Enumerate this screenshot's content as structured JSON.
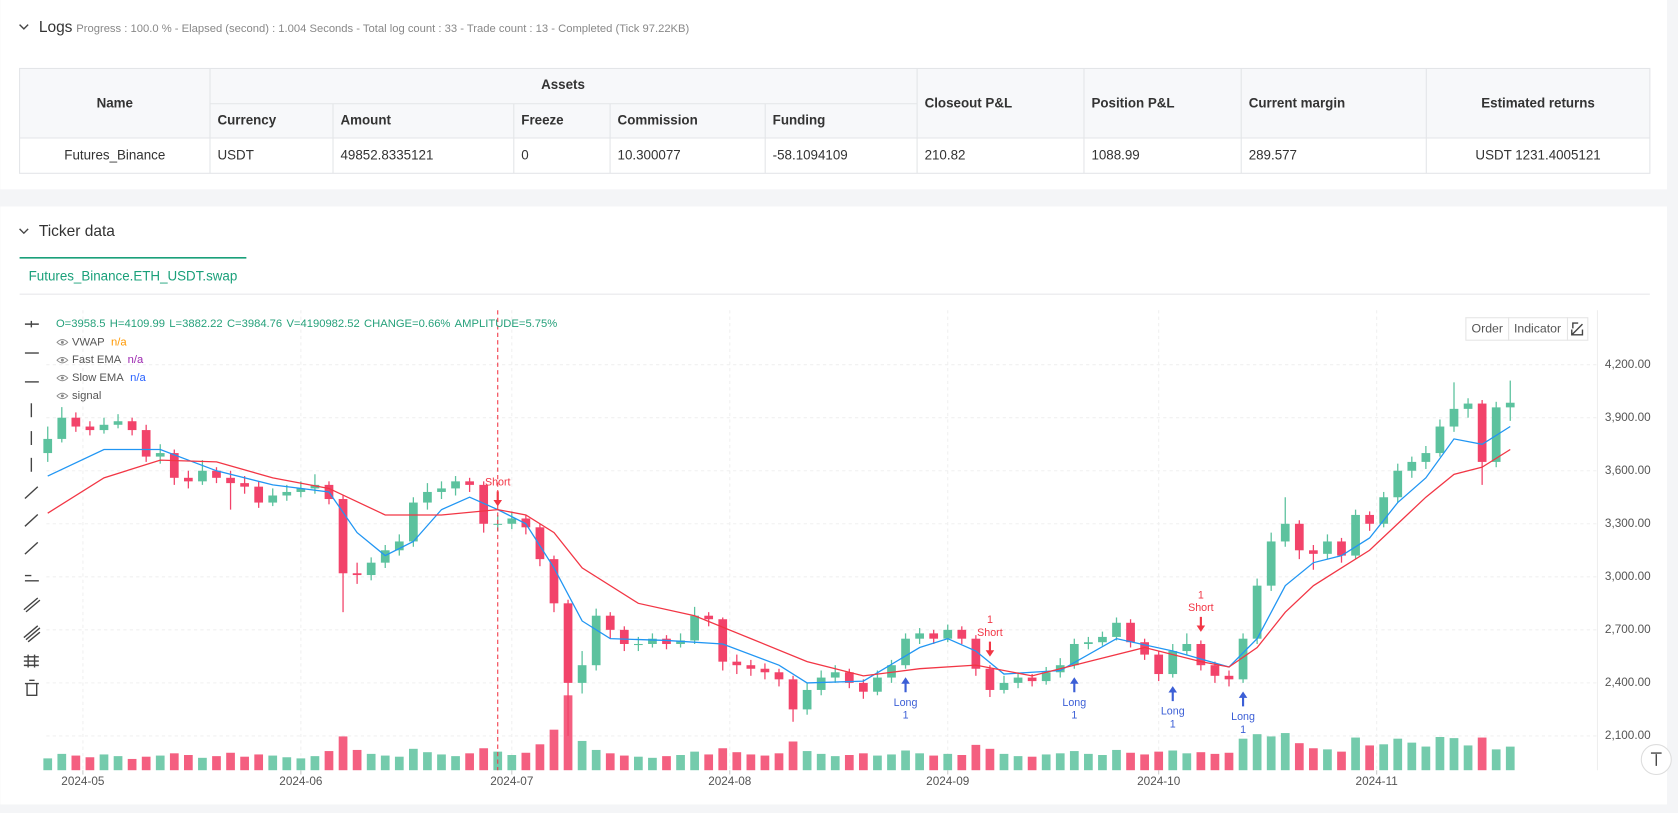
{
  "logs": {
    "title": "Logs",
    "status": "Progress : 100.0 % - Elapsed (second) :  1.004  Seconds - Total log count : 33 - Trade count : 13 - Completed (Tick 97.22KB)"
  },
  "table": {
    "name_header": "Name",
    "group_header": "Assets",
    "group_columns": [
      "Currency",
      "Amount",
      "Freeze",
      "Commission",
      "Funding"
    ],
    "columns": [
      "Closeout P&L",
      "Position P&L",
      "Current margin",
      "Estimated returns"
    ],
    "rows": [
      [
        "Futures_Binance",
        "USDT",
        "49852.8335121",
        "0",
        "10.300077",
        "-58.1094109",
        "210.82",
        "1088.99",
        "289.577",
        "USDT 1231.4005121"
      ]
    ]
  },
  "ticker": {
    "title": "Ticker data",
    "tab": "Futures_Binance.ETH_USDT.swap",
    "buttons": [
      "Order",
      "Indicator"
    ]
  },
  "chart_data": {
    "type": "candlestick",
    "ohlc_text": [
      "O=3958.5",
      "H=4109.99",
      "L=3882.22",
      "C=3984.76",
      "V=4190982.52",
      "CHANGE=0.66%",
      "AMPLITUDE=5.75%"
    ],
    "legend": [
      {
        "name": "VWAP",
        "value": "n/a",
        "color": "#ff9800"
      },
      {
        "name": "Fast EMA",
        "value": "n/a",
        "color": "#9c27b0"
      },
      {
        "name": "Slow EMA",
        "value": "n/a",
        "color": "#2962ff"
      },
      {
        "name": "signal"
      }
    ],
    "up_color": "#5cc29e",
    "down_color": "#f2436a",
    "xlim": [
      -0.1,
      110.2
    ],
    "ylim": [
      1906,
      4508
    ],
    "xticks": [
      {
        "value": 2.5,
        "label": "2024-05"
      },
      {
        "value": 18,
        "label": "2024-06"
      },
      {
        "value": 33,
        "label": "2024-07"
      },
      {
        "value": 48.5,
        "label": "2024-08"
      },
      {
        "value": 64,
        "label": "2024-09"
      },
      {
        "value": 79,
        "label": "2024-10"
      },
      {
        "value": 94.5,
        "label": "2024-11"
      }
    ],
    "yticks": [
      {
        "value": 2100,
        "label": "2,100.00"
      },
      {
        "value": 2400,
        "label": "2,400.00"
      },
      {
        "value": 2700,
        "label": "2,700.00"
      },
      {
        "value": 3000,
        "label": "3,000.00"
      },
      {
        "value": 3300,
        "label": "3,300.00"
      },
      {
        "value": 3600,
        "label": "3,600.00"
      },
      {
        "value": 3900,
        "label": "3,900.00"
      },
      {
        "value": 4200,
        "label": "4,200.00"
      }
    ],
    "open": [
      3700,
      3780,
      3900,
      3850,
      3830,
      3860,
      3880,
      3830,
      3680,
      3700,
      3560,
      3540,
      3600,
      3560,
      3530,
      3510,
      3420,
      3460,
      3480,
      3500,
      3520,
      3440,
      3020,
      3010,
      3080,
      3150,
      3200,
      3420,
      3480,
      3500,
      3540,
      3520,
      3300,
      3300,
      3330,
      3280,
      3100,
      2850,
      2400,
      2500,
      2780,
      2700,
      2620,
      2620,
      2650,
      2620,
      2640,
      2780,
      2760,
      2520,
      2500,
      2480,
      2460,
      2420,
      2250,
      2360,
      2430,
      2460,
      2400,
      2350,
      2430,
      2500,
      2650,
      2680,
      2650,
      2700,
      2650,
      2480,
      2360,
      2400,
      2430,
      2410,
      2460,
      2500,
      2620,
      2630,
      2660,
      2740,
      2630,
      2560,
      2450,
      2580,
      2620,
      2500,
      2440,
      2420,
      2650,
      2950,
      3200,
      3300,
      3150,
      3130,
      3200,
      3120,
      3350,
      3300,
      3450,
      3600,
      3650,
      3700,
      3850,
      3950,
      3980,
      3650,
      3958.5
    ],
    "high": [
      3850,
      3960,
      3930,
      3880,
      3900,
      3920,
      3900,
      3860,
      3750,
      3720,
      3600,
      3660,
      3620,
      3600,
      3570,
      3540,
      3500,
      3520,
      3540,
      3580,
      3540,
      3460,
      3080,
      3110,
      3180,
      3240,
      3450,
      3530,
      3540,
      3570,
      3560,
      3540,
      3350,
      3370,
      3350,
      3300,
      3120,
      2870,
      2580,
      2820,
      2800,
      2720,
      2660,
      2680,
      2670,
      2680,
      2830,
      2800,
      2770,
      2560,
      2530,
      2510,
      2480,
      2440,
      2400,
      2470,
      2500,
      2480,
      2420,
      2470,
      2530,
      2680,
      2710,
      2700,
      2730,
      2720,
      2670,
      2500,
      2440,
      2460,
      2450,
      2490,
      2540,
      2650,
      2660,
      2690,
      2770,
      2760,
      2650,
      2580,
      2620,
      2680,
      2640,
      2520,
      2470,
      2680,
      2990,
      3250,
      3450,
      3320,
      3180,
      3240,
      3220,
      3380,
      3370,
      3480,
      3640,
      3680,
      3740,
      3890,
      4100,
      4010,
      4000,
      3990,
      4109.99
    ],
    "low": [
      3650,
      3760,
      3820,
      3800,
      3810,
      3840,
      3800,
      3650,
      3640,
      3520,
      3500,
      3520,
      3530,
      3380,
      3470,
      3390,
      3400,
      3430,
      3450,
      3470,
      3410,
      2800,
      2960,
      2980,
      3050,
      3120,
      3170,
      3380,
      3440,
      3460,
      3480,
      3250,
      3260,
      3270,
      3240,
      3060,
      2800,
      2100,
      2340,
      2470,
      2650,
      2580,
      2580,
      2600,
      2590,
      2600,
      2620,
      2720,
      2470,
      2450,
      2440,
      2420,
      2380,
      2180,
      2220,
      2330,
      2400,
      2370,
      2310,
      2330,
      2400,
      2480,
      2620,
      2620,
      2630,
      2620,
      2440,
      2320,
      2340,
      2370,
      2380,
      2390,
      2430,
      2480,
      2590,
      2610,
      2640,
      2600,
      2530,
      2410,
      2430,
      2560,
      2470,
      2400,
      2380,
      2400,
      2620,
      2920,
      3170,
      3100,
      3040,
      3100,
      3080,
      3100,
      3260,
      3280,
      3420,
      3560,
      3610,
      3680,
      3820,
      3900,
      3520,
      3620,
      3882.22
    ],
    "close": [
      3780,
      3900,
      3850,
      3830,
      3860,
      3880,
      3830,
      3680,
      3700,
      3560,
      3540,
      3600,
      3560,
      3530,
      3510,
      3420,
      3460,
      3480,
      3500,
      3520,
      3440,
      3020,
      3010,
      3080,
      3150,
      3200,
      3420,
      3480,
      3500,
      3540,
      3520,
      3300,
      3300,
      3330,
      3280,
      3100,
      2850,
      2400,
      2500,
      2780,
      2700,
      2620,
      2620,
      2650,
      2620,
      2640,
      2780,
      2760,
      2520,
      2500,
      2480,
      2460,
      2420,
      2250,
      2360,
      2430,
      2460,
      2400,
      2350,
      2430,
      2500,
      2650,
      2680,
      2650,
      2700,
      2650,
      2480,
      2360,
      2400,
      2430,
      2410,
      2460,
      2500,
      2620,
      2630,
      2660,
      2740,
      2630,
      2560,
      2450,
      2580,
      2620,
      2500,
      2440,
      2420,
      2650,
      2950,
      3200,
      3300,
      3150,
      3130,
      3200,
      3120,
      3350,
      3300,
      3450,
      3600,
      3650,
      3700,
      3850,
      3950,
      3980,
      3650,
      3958.5,
      3984.76
    ],
    "volume": [
      2100000,
      2900000,
      2600000,
      2300000,
      2800000,
      2500000,
      2000000,
      2400000,
      2600000,
      3000000,
      2700000,
      2200000,
      2500000,
      3100000,
      2400000,
      2800000,
      2600000,
      2300000,
      2100000,
      2500000,
      3400000,
      6000000,
      3600000,
      2900000,
      2600000,
      2400000,
      3800000,
      3200000,
      2800000,
      2500000,
      3000000,
      3900000,
      3300000,
      2700000,
      3100000,
      4600000,
      7200000,
      13300000,
      5200000,
      3600000,
      3000000,
      2600000,
      2400000,
      2200000,
      2500000,
      2700000,
      3300000,
      2800000,
      3900000,
      3200000,
      2800000,
      2600000,
      3000000,
      5100000,
      3400000,
      2900000,
      2500000,
      2700000,
      3000000,
      2600000,
      2800000,
      3500000,
      3000000,
      2600000,
      2900000,
      2700000,
      4500000,
      3800000,
      2900000,
      2500000,
      2400000,
      2800000,
      3000000,
      3400000,
      2900000,
      2700000,
      3600000,
      3100000,
      2800000,
      3300000,
      3500000,
      3000000,
      3200000,
      2900000,
      3100000,
      5600000,
      6400000,
      6000000,
      6600000,
      4800000,
      3900000,
      3700000,
      3300000,
      5800000,
      4400000,
      4600000,
      5600000,
      4900000,
      4200000,
      5900000,
      5700000,
      4400000,
      5800000,
      3700000,
      4190982.52
    ],
    "series": [
      {
        "color": "#2196f3",
        "x": [
          0,
          4,
          8,
          12,
          16,
          20,
          22,
          24,
          26,
          28,
          30,
          32,
          34,
          36,
          38,
          40,
          44,
          48,
          52,
          54,
          58,
          62,
          64,
          66,
          68,
          72,
          76,
          80,
          84,
          86,
          88,
          90,
          92,
          94,
          96,
          98,
          100,
          102,
          104
        ],
        "values": [
          3570,
          3720,
          3720,
          3600,
          3520,
          3480,
          3250,
          3120,
          3200,
          3380,
          3450,
          3380,
          3300,
          3050,
          2750,
          2650,
          2640,
          2620,
          2500,
          2400,
          2410,
          2600,
          2650,
          2580,
          2450,
          2470,
          2650,
          2580,
          2490,
          2650,
          2950,
          3080,
          3120,
          3220,
          3420,
          3560,
          3780,
          3750,
          3850
        ]
      },
      {
        "color": "#f23645",
        "x": [
          0,
          4,
          8,
          12,
          16,
          20,
          24,
          28,
          32,
          34,
          36,
          38,
          42,
          46,
          50,
          54,
          58,
          62,
          66,
          70,
          74,
          78,
          82,
          84,
          86,
          88,
          90,
          92,
          94,
          96,
          98,
          100,
          102,
          104
        ],
        "values": [
          3360,
          3560,
          3660,
          3650,
          3560,
          3500,
          3350,
          3350,
          3380,
          3350,
          3250,
          3050,
          2850,
          2780,
          2650,
          2520,
          2440,
          2480,
          2500,
          2440,
          2520,
          2600,
          2520,
          2490,
          2600,
          2800,
          2950,
          3050,
          3150,
          3300,
          3450,
          3580,
          3620,
          3720
        ]
      }
    ],
    "signals": [
      {
        "x": 32,
        "side": "Short",
        "color": "#f23645"
      },
      {
        "x": 61,
        "side": "Long",
        "count": 1,
        "color": "#3c5fd6"
      },
      {
        "x": 67,
        "side": "Short",
        "count": 1,
        "color": "#f23645"
      },
      {
        "x": 73,
        "side": "Long",
        "count": 1,
        "color": "#3c5fd6"
      },
      {
        "x": 80,
        "side": "Long",
        "count": 1,
        "color": "#3c5fd6"
      },
      {
        "x": 82,
        "side": "Short",
        "count": 1,
        "color": "#f23645"
      },
      {
        "x": 85,
        "side": "Long",
        "count": 1,
        "color": "#3c5fd6"
      }
    ]
  }
}
